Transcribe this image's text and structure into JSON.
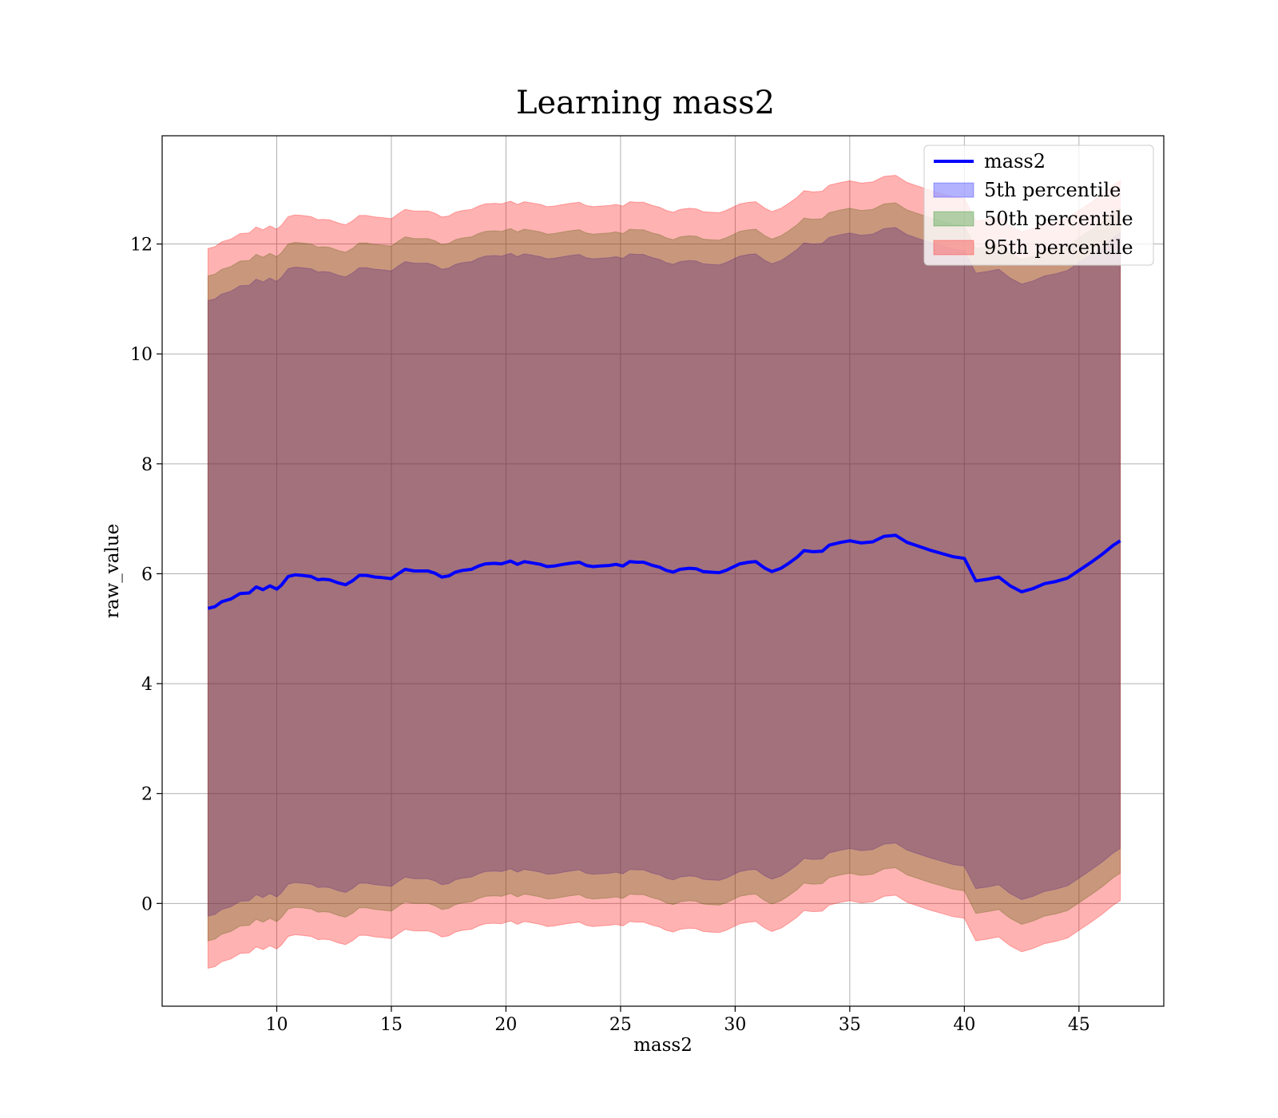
{
  "chart_data": {
    "type": "line",
    "title": "Learning mass2",
    "xlabel": "mass2",
    "ylabel": "raw_value",
    "xlim": [
      5.0,
      48.7
    ],
    "ylim": [
      -1.87,
      13.97
    ],
    "xticks": [
      10,
      15,
      20,
      25,
      30,
      35,
      40,
      45
    ],
    "yticks": [
      0,
      2,
      4,
      6,
      8,
      10,
      12
    ],
    "grid": true,
    "legend_position": "top-right",
    "colors": {
      "line": "#0000ff",
      "band_5th": "#0000ff",
      "band_50th": "#008000",
      "band_95th": "#ff0000",
      "grid": "#b0b0b0"
    },
    "band_opacity": 0.3,
    "legend": [
      {
        "label": "mass2",
        "kind": "line",
        "color": "#0000ff"
      },
      {
        "label": "5th percentile",
        "kind": "patch",
        "color": "#0000ff"
      },
      {
        "label": "50th percentile",
        "kind": "patch",
        "color": "#008000"
      },
      {
        "label": "95th percentile",
        "kind": "patch",
        "color": "#ff0000"
      }
    ],
    "x": [
      7.0,
      7.3,
      7.6,
      8.0,
      8.4,
      8.8,
      9.1,
      9.4,
      9.7,
      10.0,
      10.2,
      10.5,
      10.8,
      11.1,
      11.5,
      11.8,
      12.0,
      12.3,
      12.7,
      13.0,
      13.3,
      13.6,
      13.9,
      14.3,
      14.6,
      15.0,
      15.3,
      15.6,
      16.0,
      16.3,
      16.6,
      16.9,
      17.2,
      17.5,
      17.8,
      18.1,
      18.5,
      18.8,
      19.1,
      19.5,
      19.8,
      20.2,
      20.5,
      20.8,
      21.1,
      21.5,
      21.8,
      22.1,
      22.5,
      22.8,
      23.2,
      23.5,
      23.8,
      24.1,
      24.5,
      24.8,
      25.1,
      25.4,
      25.7,
      26.0,
      26.4,
      26.7,
      27.0,
      27.3,
      27.6,
      28.0,
      28.3,
      28.6,
      28.9,
      29.3,
      29.6,
      29.9,
      30.2,
      30.6,
      30.9,
      31.3,
      31.6,
      32.0,
      32.3,
      32.7,
      33.0,
      33.4,
      33.8,
      34.1,
      34.6,
      35.0,
      35.5,
      36.0,
      36.5,
      37.0,
      37.5,
      38.0,
      38.5,
      39.0,
      39.5,
      40.0,
      40.5,
      41.0,
      41.5,
      42.0,
      42.5,
      43.0,
      43.5,
      44.0,
      44.5,
      45.0,
      45.5,
      46.0,
      46.5,
      46.8
    ],
    "series": [
      {
        "name": "mass2",
        "kind": "line",
        "values": [
          5.37,
          5.4,
          5.49,
          5.54,
          5.64,
          5.65,
          5.76,
          5.71,
          5.78,
          5.72,
          5.79,
          5.95,
          5.98,
          5.97,
          5.95,
          5.89,
          5.9,
          5.89,
          5.83,
          5.8,
          5.87,
          5.97,
          5.97,
          5.94,
          5.93,
          5.91,
          6.0,
          6.08,
          6.05,
          6.05,
          6.05,
          6.01,
          5.94,
          5.96,
          6.03,
          6.06,
          6.08,
          6.14,
          6.18,
          6.19,
          6.18,
          6.23,
          6.17,
          6.22,
          6.2,
          6.17,
          6.13,
          6.14,
          6.17,
          6.19,
          6.21,
          6.15,
          6.13,
          6.14,
          6.15,
          6.17,
          6.14,
          6.22,
          6.21,
          6.21,
          6.15,
          6.12,
          6.06,
          6.03,
          6.08,
          6.1,
          6.09,
          6.04,
          6.03,
          6.02,
          6.06,
          6.12,
          6.18,
          6.21,
          6.22,
          6.1,
          6.04,
          6.1,
          6.18,
          6.3,
          6.42,
          6.4,
          6.41,
          6.52,
          6.57,
          6.6,
          6.56,
          6.58,
          6.68,
          6.7,
          6.57,
          6.5,
          6.43,
          6.37,
          6.31,
          6.28,
          5.87,
          5.9,
          5.94,
          5.78,
          5.67,
          5.73,
          5.82,
          5.86,
          5.92,
          6.06,
          6.2,
          6.35,
          6.52,
          6.6
        ]
      },
      {
        "name": "5th percentile",
        "kind": "band",
        "lower": [
          -0.23,
          -0.2,
          -0.11,
          -0.06,
          0.04,
          0.05,
          0.16,
          0.11,
          0.18,
          0.12,
          0.19,
          0.35,
          0.38,
          0.37,
          0.35,
          0.29,
          0.3,
          0.29,
          0.23,
          0.2,
          0.27,
          0.37,
          0.37,
          0.34,
          0.33,
          0.31,
          0.4,
          0.48,
          0.45,
          0.45,
          0.45,
          0.41,
          0.34,
          0.36,
          0.43,
          0.46,
          0.48,
          0.54,
          0.58,
          0.59,
          0.58,
          0.63,
          0.57,
          0.62,
          0.6,
          0.57,
          0.53,
          0.54,
          0.57,
          0.59,
          0.61,
          0.55,
          0.53,
          0.54,
          0.55,
          0.57,
          0.54,
          0.62,
          0.61,
          0.61,
          0.55,
          0.52,
          0.46,
          0.43,
          0.48,
          0.5,
          0.49,
          0.44,
          0.43,
          0.42,
          0.46,
          0.52,
          0.58,
          0.61,
          0.62,
          0.5,
          0.44,
          0.5,
          0.58,
          0.7,
          0.82,
          0.8,
          0.81,
          0.92,
          0.97,
          1.0,
          0.96,
          0.98,
          1.08,
          1.1,
          0.97,
          0.9,
          0.83,
          0.77,
          0.71,
          0.68,
          0.27,
          0.3,
          0.34,
          0.18,
          0.07,
          0.13,
          0.22,
          0.26,
          0.32,
          0.46,
          0.6,
          0.75,
          0.92,
          1.0
        ],
        "upper": [
          10.97,
          11.0,
          11.09,
          11.14,
          11.24,
          11.25,
          11.36,
          11.31,
          11.38,
          11.32,
          11.39,
          11.55,
          11.58,
          11.57,
          11.55,
          11.49,
          11.5,
          11.49,
          11.43,
          11.4,
          11.47,
          11.57,
          11.57,
          11.54,
          11.53,
          11.51,
          11.6,
          11.68,
          11.65,
          11.65,
          11.65,
          11.61,
          11.54,
          11.56,
          11.63,
          11.66,
          11.68,
          11.74,
          11.78,
          11.79,
          11.78,
          11.83,
          11.77,
          11.82,
          11.8,
          11.77,
          11.73,
          11.74,
          11.77,
          11.79,
          11.81,
          11.75,
          11.73,
          11.74,
          11.75,
          11.77,
          11.74,
          11.82,
          11.81,
          11.81,
          11.75,
          11.72,
          11.66,
          11.63,
          11.68,
          11.7,
          11.69,
          11.64,
          11.63,
          11.62,
          11.66,
          11.72,
          11.78,
          11.81,
          11.82,
          11.7,
          11.64,
          11.7,
          11.78,
          11.9,
          12.02,
          12.0,
          12.01,
          12.12,
          12.17,
          12.2,
          12.16,
          12.18,
          12.28,
          12.3,
          12.17,
          12.1,
          12.03,
          11.97,
          11.91,
          11.88,
          11.47,
          11.5,
          11.54,
          11.38,
          11.27,
          11.33,
          11.42,
          11.46,
          11.52,
          11.66,
          11.8,
          11.95,
          12.12,
          12.2
        ]
      },
      {
        "name": "50th percentile",
        "kind": "band",
        "lower": [
          -0.68,
          -0.65,
          -0.56,
          -0.51,
          -0.41,
          -0.4,
          -0.29,
          -0.34,
          -0.27,
          -0.33,
          -0.26,
          -0.1,
          -0.07,
          -0.08,
          -0.1,
          -0.16,
          -0.15,
          -0.16,
          -0.22,
          -0.25,
          -0.18,
          -0.08,
          -0.08,
          -0.11,
          -0.12,
          -0.14,
          -0.05,
          0.03,
          0.0,
          0.0,
          0.0,
          -0.04,
          -0.11,
          -0.09,
          -0.02,
          0.01,
          0.03,
          0.09,
          0.13,
          0.14,
          0.13,
          0.18,
          0.12,
          0.17,
          0.15,
          0.12,
          0.08,
          0.09,
          0.12,
          0.14,
          0.16,
          0.1,
          0.08,
          0.09,
          0.1,
          0.12,
          0.09,
          0.17,
          0.16,
          0.16,
          0.1,
          0.07,
          0.01,
          -0.02,
          0.03,
          0.05,
          0.04,
          -0.01,
          -0.02,
          -0.03,
          0.01,
          0.07,
          0.13,
          0.16,
          0.17,
          0.05,
          -0.01,
          0.05,
          0.13,
          0.25,
          0.37,
          0.35,
          0.36,
          0.47,
          0.52,
          0.55,
          0.51,
          0.53,
          0.63,
          0.65,
          0.52,
          0.45,
          0.38,
          0.32,
          0.26,
          0.23,
          -0.18,
          -0.15,
          -0.11,
          -0.27,
          -0.38,
          -0.32,
          -0.23,
          -0.19,
          -0.13,
          0.01,
          0.15,
          0.3,
          0.47,
          0.55
        ],
        "upper": [
          11.42,
          11.45,
          11.54,
          11.59,
          11.69,
          11.7,
          11.81,
          11.76,
          11.83,
          11.77,
          11.84,
          12.0,
          12.03,
          12.02,
          12.0,
          11.94,
          11.95,
          11.94,
          11.88,
          11.85,
          11.92,
          12.02,
          12.02,
          11.99,
          11.98,
          11.96,
          12.05,
          12.13,
          12.1,
          12.1,
          12.1,
          12.06,
          11.99,
          12.01,
          12.08,
          12.11,
          12.13,
          12.19,
          12.23,
          12.24,
          12.23,
          12.28,
          12.22,
          12.27,
          12.25,
          12.22,
          12.18,
          12.19,
          12.22,
          12.24,
          12.26,
          12.2,
          12.18,
          12.19,
          12.2,
          12.22,
          12.19,
          12.27,
          12.26,
          12.26,
          12.2,
          12.17,
          12.11,
          12.08,
          12.13,
          12.15,
          12.14,
          12.09,
          12.08,
          12.07,
          12.11,
          12.17,
          12.23,
          12.26,
          12.27,
          12.15,
          12.09,
          12.15,
          12.23,
          12.35,
          12.47,
          12.45,
          12.46,
          12.57,
          12.62,
          12.65,
          12.61,
          12.63,
          12.73,
          12.75,
          12.62,
          12.55,
          12.48,
          12.42,
          12.36,
          12.33,
          11.92,
          11.95,
          11.99,
          11.83,
          11.72,
          11.78,
          11.87,
          11.91,
          11.97,
          12.11,
          12.25,
          12.4,
          12.57,
          12.65
        ]
      },
      {
        "name": "95th percentile",
        "kind": "band",
        "lower": [
          -1.18,
          -1.15,
          -1.06,
          -1.01,
          -0.91,
          -0.9,
          -0.79,
          -0.84,
          -0.77,
          -0.83,
          -0.76,
          -0.6,
          -0.57,
          -0.58,
          -0.6,
          -0.66,
          -0.65,
          -0.66,
          -0.72,
          -0.75,
          -0.68,
          -0.58,
          -0.58,
          -0.61,
          -0.62,
          -0.64,
          -0.55,
          -0.47,
          -0.5,
          -0.5,
          -0.5,
          -0.54,
          -0.61,
          -0.59,
          -0.52,
          -0.49,
          -0.47,
          -0.41,
          -0.37,
          -0.36,
          -0.37,
          -0.32,
          -0.38,
          -0.33,
          -0.35,
          -0.38,
          -0.42,
          -0.41,
          -0.38,
          -0.36,
          -0.34,
          -0.4,
          -0.42,
          -0.41,
          -0.4,
          -0.38,
          -0.41,
          -0.33,
          -0.34,
          -0.34,
          -0.4,
          -0.43,
          -0.49,
          -0.52,
          -0.47,
          -0.45,
          -0.46,
          -0.51,
          -0.52,
          -0.53,
          -0.49,
          -0.43,
          -0.37,
          -0.34,
          -0.33,
          -0.45,
          -0.51,
          -0.45,
          -0.37,
          -0.25,
          -0.13,
          -0.15,
          -0.14,
          -0.03,
          0.02,
          0.05,
          0.01,
          0.03,
          0.13,
          0.15,
          0.02,
          -0.05,
          -0.12,
          -0.18,
          -0.24,
          -0.27,
          -0.68,
          -0.65,
          -0.61,
          -0.77,
          -0.88,
          -0.82,
          -0.73,
          -0.69,
          -0.63,
          -0.49,
          -0.35,
          -0.2,
          -0.03,
          0.05
        ],
        "upper": [
          11.92,
          11.95,
          12.04,
          12.09,
          12.19,
          12.2,
          12.31,
          12.26,
          12.33,
          12.27,
          12.34,
          12.5,
          12.53,
          12.52,
          12.5,
          12.44,
          12.45,
          12.44,
          12.38,
          12.35,
          12.42,
          12.52,
          12.52,
          12.49,
          12.48,
          12.46,
          12.55,
          12.63,
          12.6,
          12.6,
          12.6,
          12.56,
          12.49,
          12.51,
          12.58,
          12.61,
          12.63,
          12.69,
          12.73,
          12.74,
          12.73,
          12.78,
          12.72,
          12.77,
          12.75,
          12.72,
          12.68,
          12.69,
          12.72,
          12.74,
          12.76,
          12.7,
          12.68,
          12.69,
          12.7,
          12.72,
          12.69,
          12.77,
          12.76,
          12.76,
          12.7,
          12.67,
          12.61,
          12.58,
          12.63,
          12.65,
          12.64,
          12.59,
          12.58,
          12.57,
          12.61,
          12.67,
          12.73,
          12.76,
          12.77,
          12.65,
          12.59,
          12.65,
          12.73,
          12.85,
          12.97,
          12.95,
          12.96,
          13.07,
          13.12,
          13.15,
          13.11,
          13.13,
          13.23,
          13.25,
          13.12,
          13.05,
          12.98,
          12.92,
          12.86,
          12.83,
          12.42,
          12.45,
          12.49,
          12.33,
          12.22,
          12.28,
          12.37,
          12.41,
          12.47,
          12.61,
          12.75,
          12.9,
          13.07,
          13.15
        ]
      }
    ]
  }
}
